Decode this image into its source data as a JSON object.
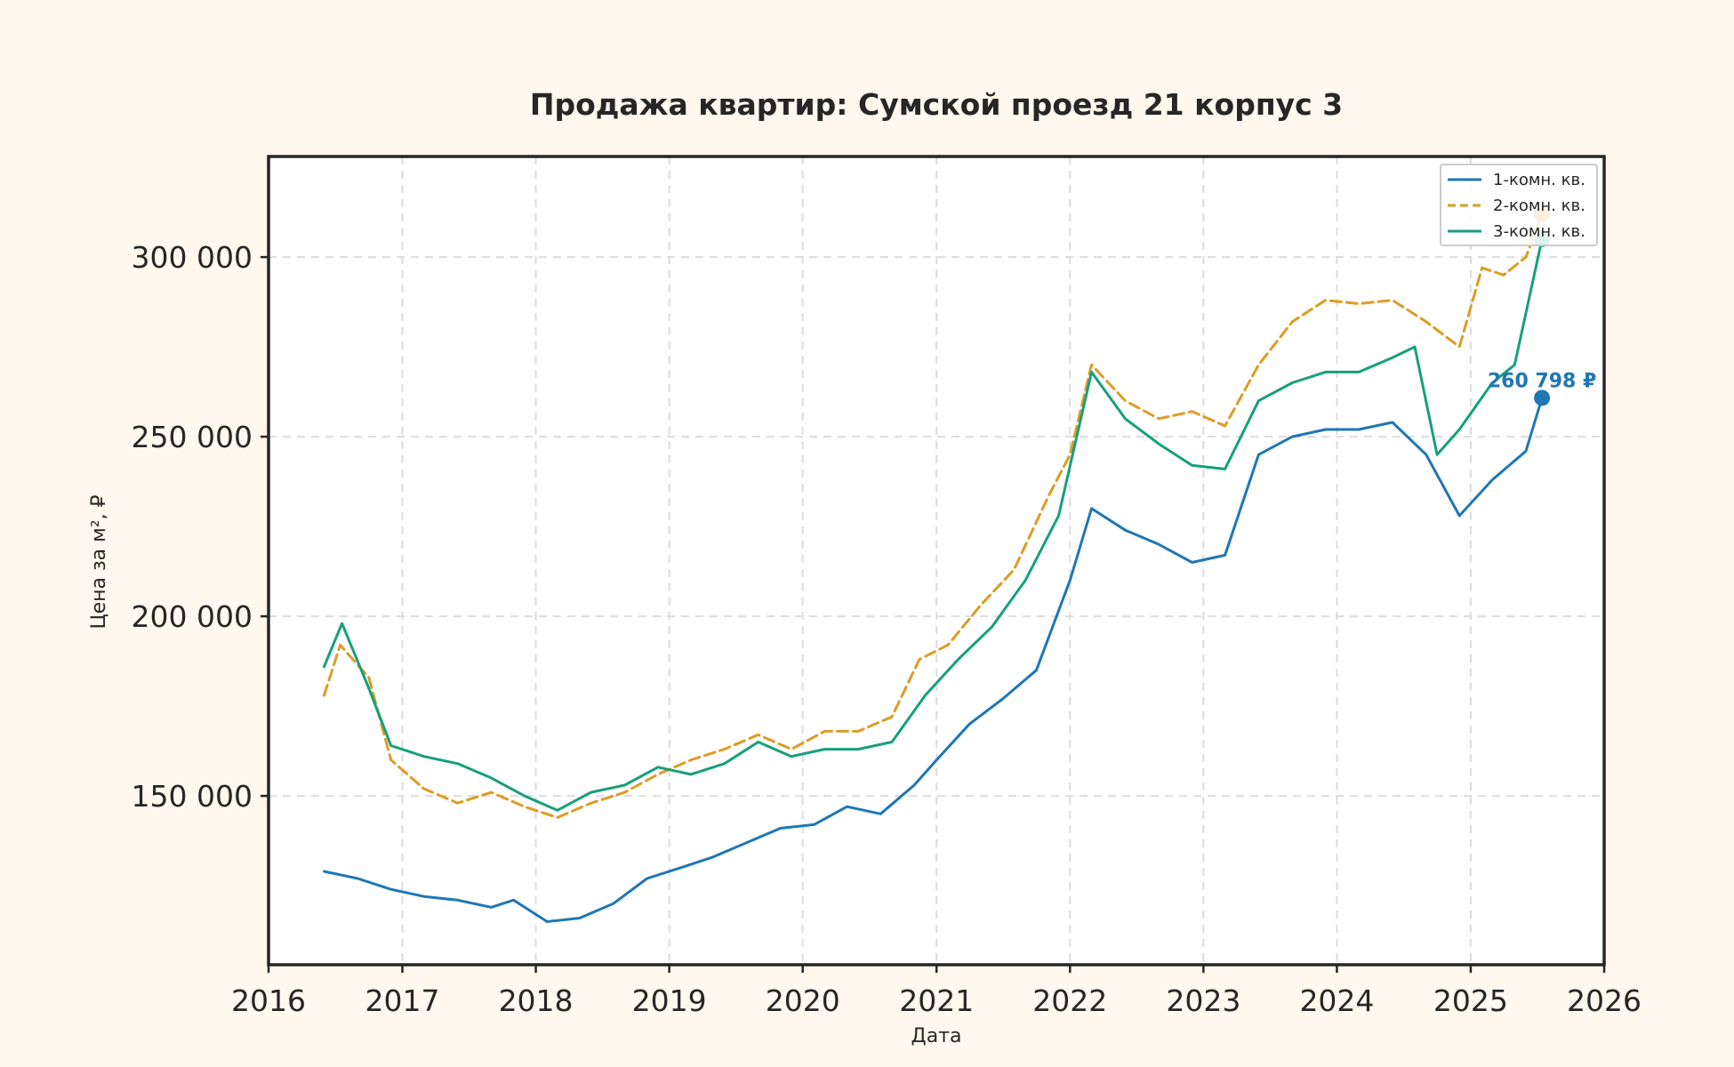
{
  "chart_data": {
    "type": "line",
    "title": "Продажа квартир: Сумской проезд 21 корпус 3",
    "xlabel": "Дата",
    "ylabel": "Цена за м², ₽",
    "xlim": [
      "2016-01-01",
      "2026-01-01"
    ],
    "ylim": [
      103000,
      328000
    ],
    "x_ticks": [
      "2016",
      "2017",
      "2018",
      "2019",
      "2020",
      "2021",
      "2022",
      "2023",
      "2024",
      "2025",
      "2026"
    ],
    "y_ticks": [
      150000,
      200000,
      250000,
      300000
    ],
    "y_tick_labels": [
      "150 000",
      "200 000",
      "250 000",
      "300 000"
    ],
    "grid": true,
    "legend_position": "top-right",
    "series": [
      {
        "name": "1-комн. кв.",
        "color": "#1f77b4",
        "style": "solid",
        "x": [
          "2016-06-01",
          "2016-09-01",
          "2016-12-01",
          "2017-03-01",
          "2017-06-01",
          "2017-09-01",
          "2017-11-01",
          "2018-02-01",
          "2018-05-01",
          "2018-08-01",
          "2018-11-01",
          "2019-02-01",
          "2019-05-01",
          "2019-08-01",
          "2019-11-01",
          "2020-02-01",
          "2020-05-01",
          "2020-08-01",
          "2020-11-01",
          "2021-01-01",
          "2021-04-01",
          "2021-07-01",
          "2021-10-01",
          "2022-01-01",
          "2022-03-01",
          "2022-06-01",
          "2022-09-01",
          "2022-12-01",
          "2023-03-01",
          "2023-06-01",
          "2023-09-01",
          "2023-12-01",
          "2024-03-01",
          "2024-06-01",
          "2024-09-01",
          "2024-12-01",
          "2025-03-01",
          "2025-06-01",
          "2025-07-15"
        ],
        "y": [
          129000,
          127000,
          124000,
          122000,
          121000,
          119000,
          121000,
          115000,
          116000,
          120000,
          127000,
          130000,
          133000,
          137000,
          141000,
          142000,
          147000,
          145000,
          153000,
          160000,
          170000,
          177000,
          185000,
          210000,
          230000,
          224000,
          220000,
          215000,
          217000,
          245000,
          250000,
          252000,
          252000,
          254000,
          245000,
          228000,
          238000,
          246000,
          260798
        ]
      },
      {
        "name": "2-комн. кв.",
        "color": "#de9c23",
        "style": "dashed",
        "x": [
          "2016-06-01",
          "2016-07-15",
          "2016-10-01",
          "2016-12-01",
          "2017-03-01",
          "2017-06-01",
          "2017-09-01",
          "2017-12-01",
          "2018-03-01",
          "2018-06-01",
          "2018-09-01",
          "2018-12-01",
          "2019-03-01",
          "2019-06-01",
          "2019-09-01",
          "2019-12-01",
          "2020-03-01",
          "2020-06-01",
          "2020-09-01",
          "2020-11-15",
          "2021-02-01",
          "2021-05-01",
          "2021-08-01",
          "2021-11-01",
          "2022-01-01",
          "2022-03-01",
          "2022-06-01",
          "2022-09-01",
          "2022-12-01",
          "2023-03-01",
          "2023-06-01",
          "2023-09-01",
          "2023-12-01",
          "2024-03-01",
          "2024-06-01",
          "2024-09-01",
          "2024-12-01",
          "2025-02-01",
          "2025-04-01",
          "2025-06-01",
          "2025-07-15"
        ],
        "y": [
          178000,
          192000,
          183000,
          160000,
          152000,
          148000,
          151000,
          147000,
          144000,
          148000,
          151000,
          156000,
          160000,
          163000,
          167000,
          163000,
          168000,
          168000,
          172000,
          188000,
          192000,
          203000,
          213000,
          233000,
          245000,
          270000,
          260000,
          255000,
          257000,
          253000,
          270000,
          282000,
          288000,
          287000,
          288000,
          282000,
          275000,
          297000,
          295000,
          300000,
          312000
        ]
      },
      {
        "name": "3-комн. кв.",
        "color": "#16a07c",
        "style": "solid",
        "x": [
          "2016-06-01",
          "2016-07-20",
          "2016-10-01",
          "2016-12-01",
          "2017-03-01",
          "2017-06-01",
          "2017-09-01",
          "2017-12-01",
          "2018-03-01",
          "2018-06-01",
          "2018-09-01",
          "2018-12-01",
          "2019-03-01",
          "2019-06-01",
          "2019-09-01",
          "2019-12-01",
          "2020-03-01",
          "2020-06-01",
          "2020-09-01",
          "2020-12-01",
          "2021-03-01",
          "2021-06-01",
          "2021-09-01",
          "2021-12-01",
          "2022-03-01",
          "2022-06-01",
          "2022-09-01",
          "2022-12-01",
          "2023-03-01",
          "2023-06-01",
          "2023-09-01",
          "2023-12-01",
          "2024-03-01",
          "2024-06-01",
          "2024-08-01",
          "2024-10-01",
          "2024-12-01",
          "2025-03-01",
          "2025-05-01",
          "2025-07-15"
        ],
        "y": [
          186000,
          198000,
          180000,
          164000,
          161000,
          159000,
          155000,
          150000,
          146000,
          151000,
          153000,
          158000,
          156000,
          159000,
          165000,
          161000,
          163000,
          163000,
          165000,
          178000,
          188000,
          197000,
          210000,
          228000,
          268000,
          255000,
          248000,
          242000,
          241000,
          260000,
          265000,
          268000,
          268000,
          272000,
          275000,
          245000,
          252000,
          265000,
          270000,
          305000
        ]
      }
    ],
    "annotations": [
      {
        "text": "260 798 ₽",
        "series": "1-комн. кв.",
        "x": "2025-07-15",
        "y": 260798
      }
    ]
  }
}
